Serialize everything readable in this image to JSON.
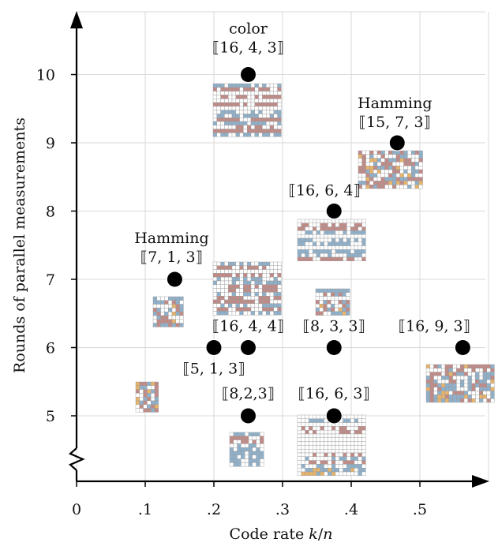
{
  "chart_data": {
    "type": "scatter",
    "xlabel": "Code rate k/n",
    "ylabel": "Rounds of parallel measurements",
    "xlim": [
      0,
      0.6
    ],
    "ylim": [
      4,
      11
    ],
    "x_ticks": [
      "0",
      ".1",
      ".2",
      ".3",
      ".4",
      ".5"
    ],
    "y_ticks": [
      "5",
      "6",
      "7",
      "8",
      "9",
      "10"
    ],
    "grid": true,
    "y_axis_break": true,
    "points": [
      {
        "x": 0.2,
        "y": 6,
        "label": "⟦5, 1, 3⟧",
        "sublabel": ""
      },
      {
        "x": 0.143,
        "y": 7,
        "label": "⟦7, 1, 3⟧",
        "sublabel": "Hamming"
      },
      {
        "x": 0.25,
        "y": 5,
        "label": "⟦8,2,3⟧",
        "sublabel": ""
      },
      {
        "x": 0.25,
        "y": 6,
        "label": "⟦16, 4, 4⟧",
        "sublabel": ""
      },
      {
        "x": 0.25,
        "y": 10,
        "label": "⟦16, 4, 3⟧",
        "sublabel": "color"
      },
      {
        "x": 0.375,
        "y": 5,
        "label": "⟦16, 6, 3⟧",
        "sublabel": ""
      },
      {
        "x": 0.375,
        "y": 6,
        "label": "⟦8, 3, 3⟧",
        "sublabel": ""
      },
      {
        "x": 0.375,
        "y": 8,
        "label": "⟦16, 6, 4⟧",
        "sublabel": ""
      },
      {
        "x": 0.467,
        "y": 9,
        "label": "⟦15, 7, 3⟧",
        "sublabel": "Hamming"
      },
      {
        "x": 0.5625,
        "y": 6,
        "label": "⟦16, 9, 3⟧",
        "sublabel": ""
      }
    ],
    "colors": {
      "marker": "#000000",
      "grid": "#d9d9d9",
      "cell_red": "#c08a86",
      "cell_blue": "#8fb0ca",
      "cell_orange": "#e8b46a",
      "cell_empty": "#ffffff",
      "cell_border": "#9a9a9a"
    }
  }
}
